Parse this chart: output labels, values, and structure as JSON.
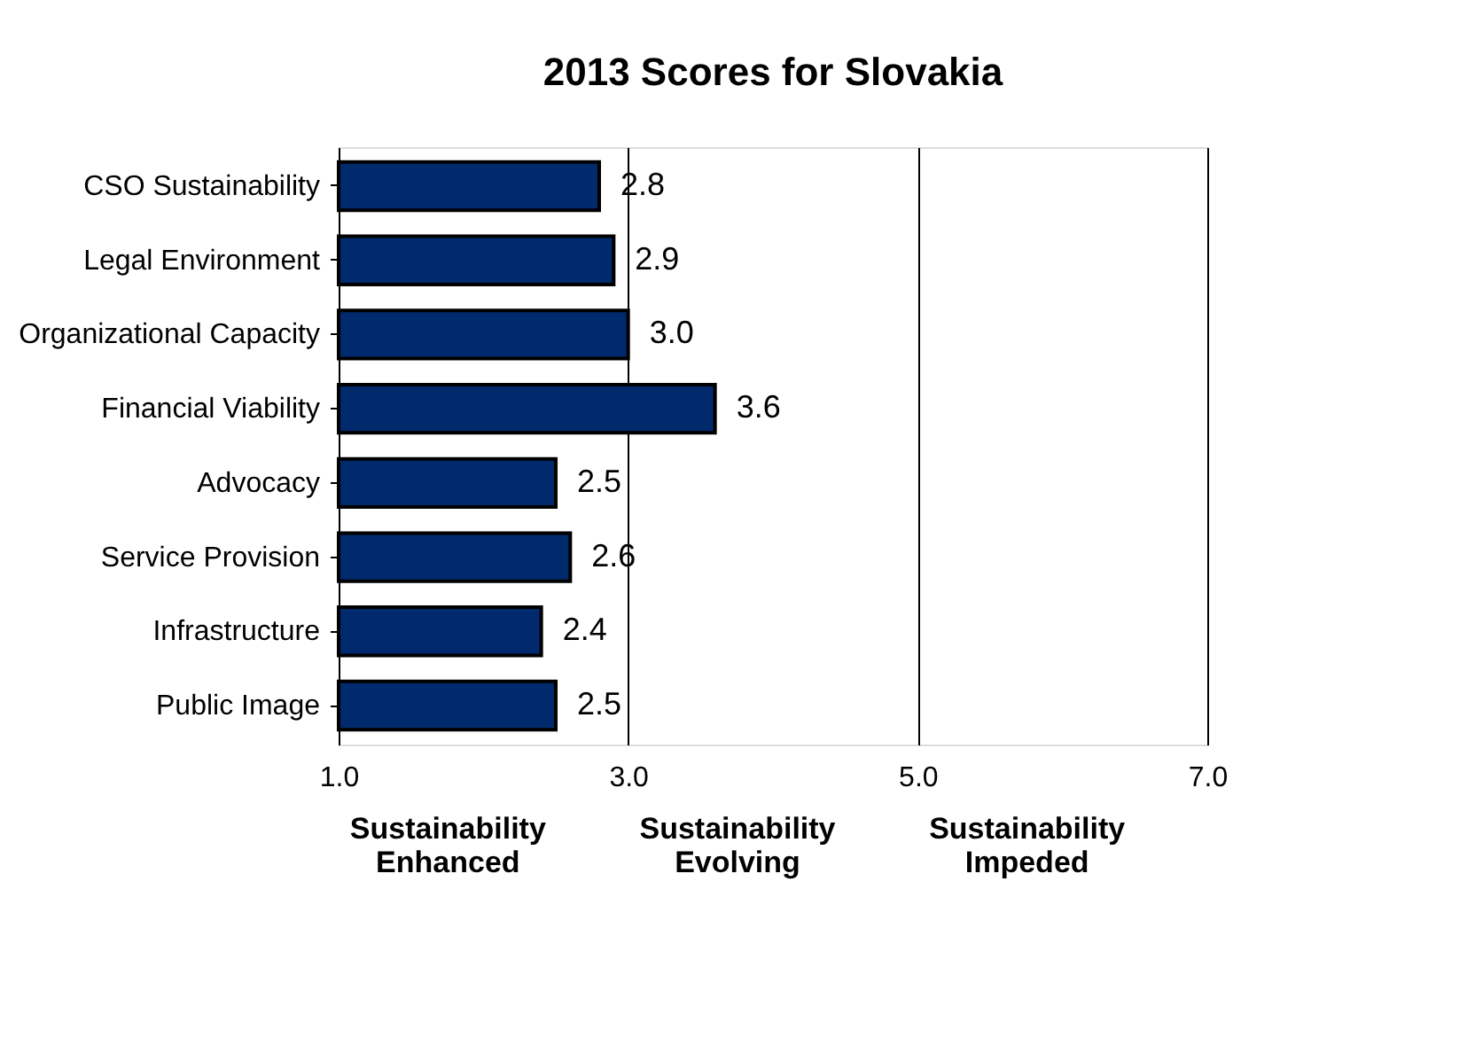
{
  "chart_data": {
    "type": "bar",
    "orientation": "horizontal",
    "title": "2013 Scores for Slovakia",
    "categories": [
      "CSO Sustainability",
      "Legal Environment",
      "Organizational Capacity",
      "Financial Viability",
      "Advocacy",
      "Service Provision",
      "Infrastructure",
      "Public Image"
    ],
    "values": [
      2.8,
      2.9,
      3.0,
      3.6,
      2.5,
      2.6,
      2.4,
      2.5
    ],
    "color": "#002a6c",
    "value_labels": [
      "2.8",
      "2.9",
      "3.0",
      "3.6",
      "2.5",
      "2.6",
      "2.4",
      "2.5"
    ],
    "xlim": [
      1,
      7
    ],
    "xticks": [
      {
        "value": 1,
        "label": "1.0"
      },
      {
        "value": 3,
        "label": "3.0"
      },
      {
        "value": 5,
        "label": "5.0"
      },
      {
        "value": 7,
        "label": "7.0"
      }
    ],
    "grid": "x",
    "annotations": [
      "Sustainability Enhanced",
      "Sustainability Evolving",
      "Sustainability Impeded"
    ]
  }
}
